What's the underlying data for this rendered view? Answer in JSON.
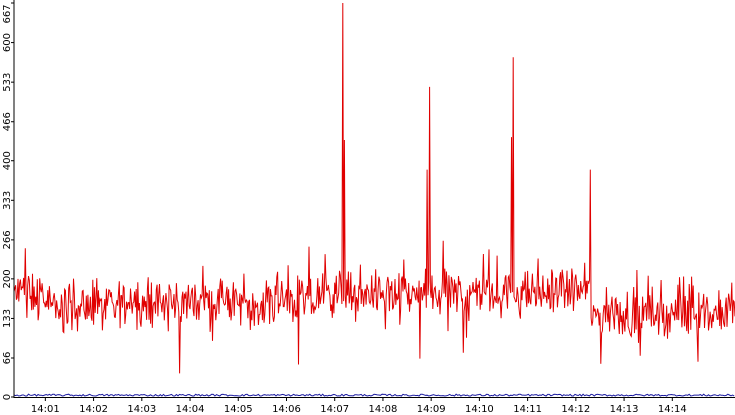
{
  "colors": {
    "series": "#e00000",
    "baseline": "#1a1aa0",
    "axis": "#000000",
    "background": "#ffffff"
  },
  "chart_data": {
    "type": "line",
    "title": "",
    "xlabel": "",
    "ylabel": "",
    "ylim": [
      0,
      667
    ],
    "grid": false,
    "legend": "none",
    "y_tick_values": [
      0,
      66,
      133,
      200,
      266,
      333,
      400,
      466,
      533,
      600,
      667
    ],
    "y_tick_labels": [
      "0",
      "66",
      "133",
      "200",
      "266",
      "333",
      "400",
      "466",
      "533",
      "600",
      "667"
    ],
    "x_tick_labels": [
      "14:01",
      "14:02",
      "14:03",
      "14:04",
      "14:05",
      "14:06",
      "14:07",
      "14:08",
      "14:09",
      "14:10",
      "14:11",
      "14:12",
      "14:13",
      "14:14"
    ],
    "x_range_minutes": [
      0.35,
      15.3
    ],
    "series": [
      {
        "color": "#e00000",
        "baseline_level": 165,
        "spikes": [
          {
            "time": "14:07:10",
            "value": 667
          },
          {
            "time": "14:07:12",
            "value": 435
          },
          {
            "time": "14:08:58",
            "value": 525
          },
          {
            "time": "14:08:55",
            "value": 385
          },
          {
            "time": "14:10:42",
            "value": 575
          },
          {
            "time": "14:10:40",
            "value": 440
          },
          {
            "time": "14:12:18",
            "value": 385
          }
        ],
        "dips": [
          {
            "time": "14:03:47",
            "value": 40
          },
          {
            "time": "14:06:15",
            "value": 55
          },
          {
            "time": "14:08:46",
            "value": 65
          },
          {
            "time": "14:09:40",
            "value": 75
          },
          {
            "time": "14:13:20",
            "value": 70
          }
        ]
      },
      {
        "color": "#1a1aa0",
        "baseline_level": 2
      }
    ]
  }
}
